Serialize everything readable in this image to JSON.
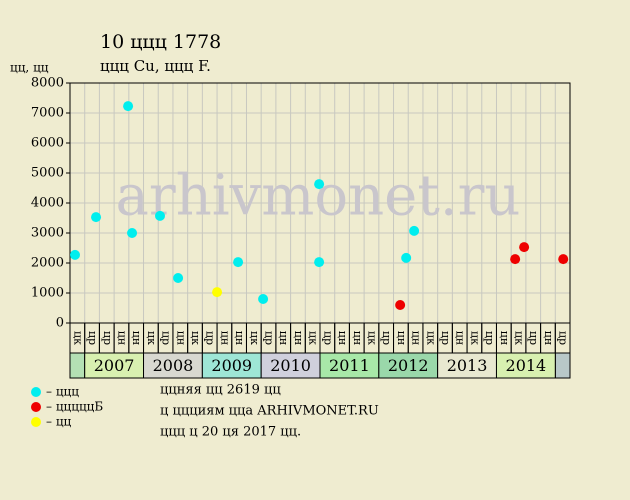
{
  "chart_data": {
    "type": "scatter",
    "title": "10 ццц 1778",
    "subtitle": "ццц Cu, ццц F.",
    "y_label": "цц, цц",
    "watermark": "arhivmonet.ru",
    "ylim": [
      0,
      8000
    ],
    "yticks": [
      0,
      1000,
      2000,
      3000,
      4000,
      5000,
      6000,
      7000,
      8000
    ],
    "xlim": [
      0,
      34
    ],
    "grid": true,
    "columns": [
      "цк",
      "цр",
      "цр",
      "цн",
      "цн",
      "цк",
      "цр",
      "цн",
      "цк",
      "цр",
      "цн",
      "цн",
      "цк",
      "цр",
      "цн",
      "цн",
      "цк",
      "цр",
      "цн",
      "цн",
      "цк",
      "цр",
      "цн",
      "цн",
      "цк",
      "цр",
      "цн",
      "цк",
      "цр",
      "цн",
      "цк",
      "цр",
      "цн",
      "цр"
    ],
    "years": [
      {
        "label": "2007",
        "color": "#d8f0b0"
      },
      {
        "label": "2008",
        "color": "#d8d8d0"
      },
      {
        "label": "2009",
        "color": "#9ee6d6"
      },
      {
        "label": "2010",
        "color": "#d0d0dc"
      },
      {
        "label": "2011",
        "color": "#a8e8a8"
      },
      {
        "label": "2012",
        "color": "#9ad8aa"
      },
      {
        "label": "2013",
        "color": "#e8e8d0"
      },
      {
        "label": "2014",
        "color": "#d8f0b0"
      }
    ],
    "series": [
      {
        "name": "– ццц",
        "color": "#00eeee",
        "x": [
          0.34,
          1.77,
          3.95,
          4.22,
          6.12,
          7.35,
          11.43,
          13.13,
          16.94,
          16.94,
          22.86,
          23.4
        ],
        "values": [
          2270,
          3530,
          7230,
          3000,
          3570,
          1500,
          2030,
          800,
          4630,
          2030,
          2170,
          3070
        ]
      },
      {
        "name": "– цццццБ",
        "color": "#ee0000",
        "x": [
          22.45,
          30.27,
          30.88,
          33.54
        ],
        "values": [
          600,
          2130,
          2530,
          2130
        ]
      },
      {
        "name": "– цц",
        "color": "#ffff00",
        "x": [
          10.0
        ],
        "values": [
          1030
        ]
      }
    ],
    "notes": [
      "ццняя цц 2619 цц",
      "ц ццциям цца ARHIVMONET.RU",
      "ццц ц 20 ця 2017 цц."
    ]
  }
}
